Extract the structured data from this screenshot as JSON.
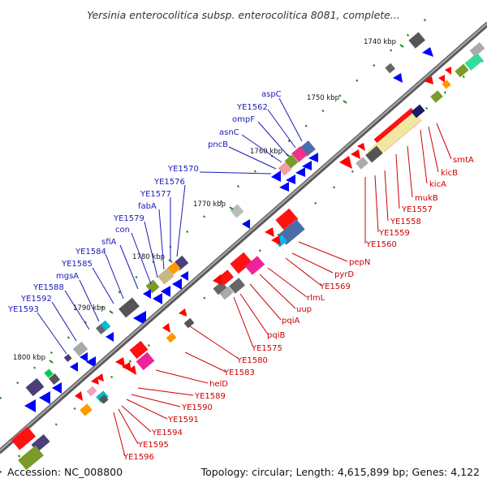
{
  "title": "Yersinia enterocolitica subsp. enterocolitica 8081, complete...",
  "footer": {
    "accession": "Accession: NC_008800",
    "summary": "Topology: circular; Length: 4,615,899 bp; Genes: 4,122"
  },
  "kbp_marks": [
    "1740 kbp",
    "1750 kbp",
    "1760 kbp",
    "1770 kbp",
    "1780 kbp",
    "1790 kbp",
    "1800 kbp"
  ],
  "labels_upper": [
    "aspC",
    "YE1562",
    "ompF",
    "asnC",
    "pncB",
    "YE1570",
    "YE1576",
    "YE1577",
    "fabA",
    "YE1579",
    "con",
    "sfiA",
    "YE1584",
    "YE1585",
    "mgsA",
    "YE1588",
    "YE1592",
    "YE1593"
  ],
  "labels_lower": [
    "smtA",
    "kicB",
    "kicA",
    "mukB",
    "YE1557",
    "YE1558",
    "YE1559",
    "YE1560",
    "pepN",
    "pyrD",
    "YE1569",
    "rlmL",
    "uup",
    "pqiA",
    "pqiB",
    "YE1575",
    "YE1580",
    "YE1583",
    "helD",
    "YE1589",
    "YE1590",
    "YE1591",
    "YE1594",
    "YE1595",
    "YE1596"
  ],
  "colors": {
    "forward_cds": "#ff0000",
    "reverse_cds": "#0000ff",
    "backbone": "#888888",
    "label_upper": "#1a1ab8",
    "label_lower": "#cc0000",
    "tick": "#1a8a1a"
  }
}
